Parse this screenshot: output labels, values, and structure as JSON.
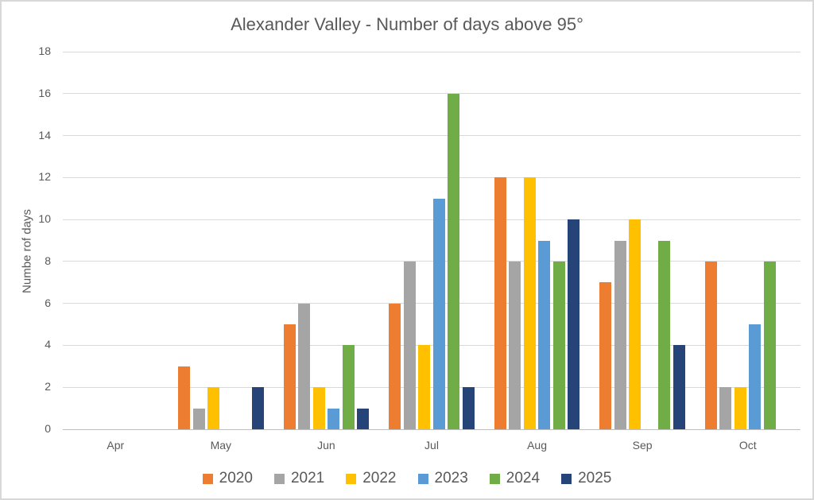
{
  "chart_data": {
    "type": "bar",
    "title": "Alexander Valley - Number of days above 95°",
    "ylabel": "Numbe rof days",
    "xlabel": "",
    "categories": [
      "Apr",
      "May",
      "Jun",
      "Jul",
      "Aug",
      "Sep",
      "Oct"
    ],
    "series": [
      {
        "name": "2020",
        "color": "#ED7D31",
        "values": [
          0,
          3,
          5,
          6,
          12,
          7,
          8
        ]
      },
      {
        "name": "2021",
        "color": "#A5A5A5",
        "values": [
          0,
          1,
          6,
          8,
          8,
          9,
          2
        ]
      },
      {
        "name": "2022",
        "color": "#FFC000",
        "values": [
          0,
          2,
          2,
          4,
          12,
          10,
          2
        ]
      },
      {
        "name": "2023",
        "color": "#5B9BD5",
        "values": [
          0,
          0,
          1,
          11,
          9,
          0,
          5
        ]
      },
      {
        "name": "2024",
        "color": "#70AD47",
        "values": [
          0,
          0,
          4,
          16,
          8,
          9,
          8
        ]
      },
      {
        "name": "2025",
        "color": "#264478",
        "values": [
          0,
          2,
          1,
          2,
          10,
          4,
          0
        ]
      }
    ],
    "ylim": [
      0,
      18
    ],
    "yticks": [
      0,
      2,
      4,
      6,
      8,
      10,
      12,
      14,
      16,
      18
    ],
    "grid": true,
    "legend_position": "bottom"
  },
  "colors": {
    "text": "#595959",
    "gridline": "#D9D9D9",
    "axis_line": "#BFBFBF",
    "background": "#FFFFFF",
    "border": "#D8D8D8"
  }
}
